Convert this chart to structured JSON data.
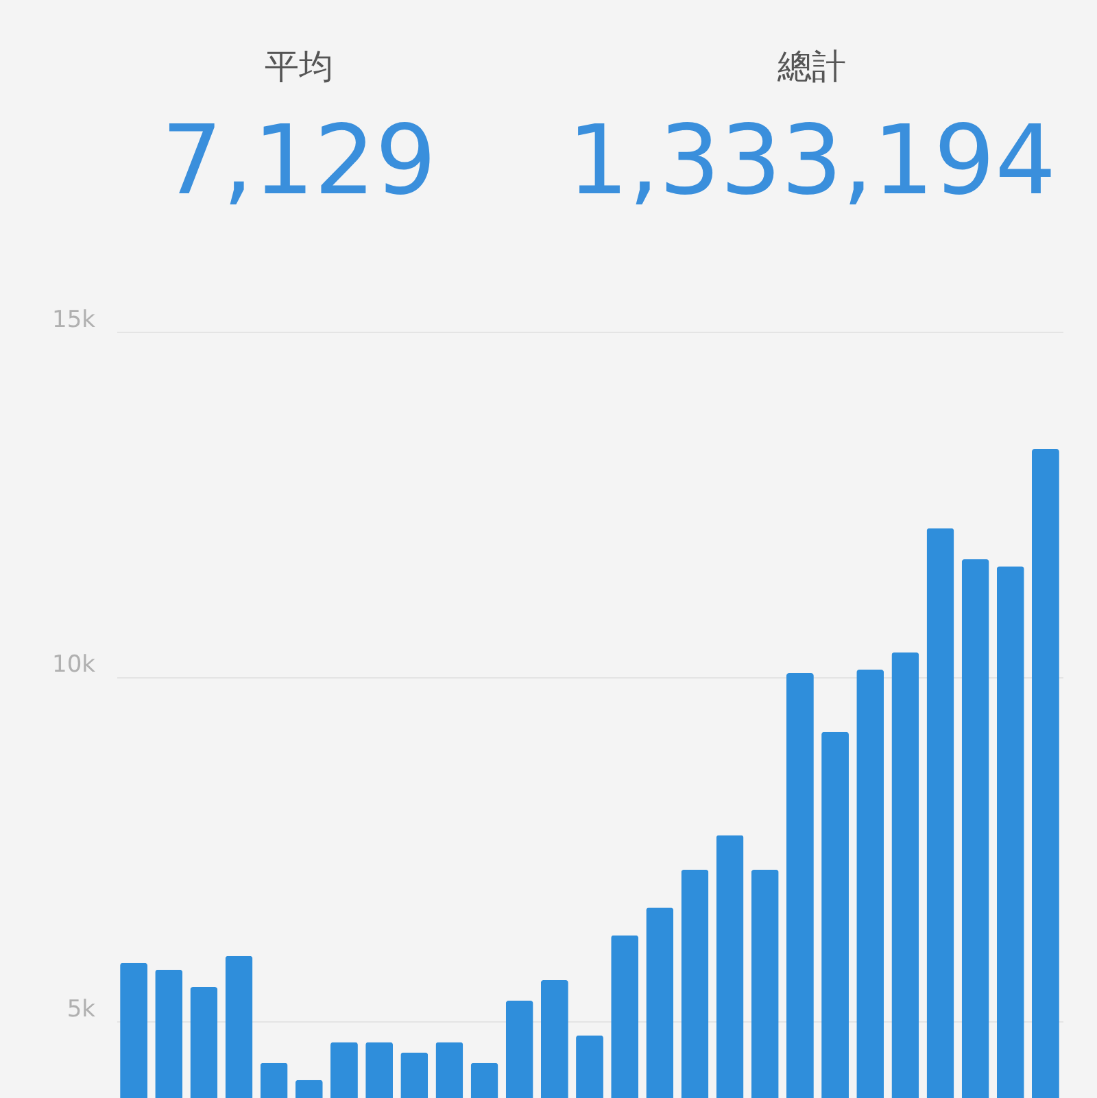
{
  "chart_data": {
    "type": "bar",
    "annotations": [
      "平均",
      "7,129",
      "總計",
      "1,333,194"
    ],
    "categories": [
      null,
      null,
      null,
      null,
      null,
      null,
      null,
      null,
      null,
      null,
      null,
      null,
      null,
      null,
      null,
      null,
      null,
      null,
      null,
      null,
      null,
      null,
      null,
      null,
      null,
      null,
      null
    ],
    "values": [
      5850,
      5750,
      5500,
      5950,
      4400,
      4150,
      4700,
      4700,
      4550,
      4700,
      4400,
      5300,
      5600,
      4800,
      6250,
      6650,
      7200,
      7700,
      7200,
      10050,
      9200,
      10100,
      10350,
      12150,
      11700,
      11600,
      13300
    ],
    "color": "#2f8edb",
    "ylim": [
      3890,
      15000
    ],
    "yticks": [
      {
        "value": 5000,
        "label": "5k"
      },
      {
        "value": 10000,
        "label": "10k"
      },
      {
        "value": 15000,
        "label": "15k"
      }
    ],
    "grid": "y",
    "tick_labels": "y"
  }
}
